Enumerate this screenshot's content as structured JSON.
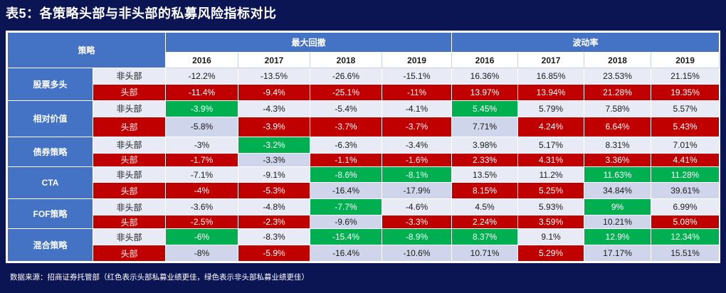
{
  "title": "表5：各策略头部与非头部的私募风险指标对比",
  "headers": {
    "strategy": "策略",
    "group_drawdown": "最大回撤",
    "group_volatility": "波动率",
    "years": [
      "2016",
      "2017",
      "2018",
      "2019",
      "2016",
      "2017",
      "2018",
      "2019"
    ]
  },
  "rows": [
    {
      "category": "股票多头",
      "sub": "非头部",
      "cells": [
        "-12.2%",
        "-13.5%",
        "-26.6%",
        "-15.1%",
        "16.36%",
        "16.85%",
        "23.53%",
        "21.15%"
      ],
      "bg": [
        "light",
        "light",
        "light",
        "light",
        "light",
        "light",
        "light",
        "light"
      ]
    },
    {
      "category": "股票多头",
      "sub": "头部",
      "cells": [
        "-11.4%",
        "-9.4%",
        "-25.1%",
        "-11%",
        "13.97%",
        "13.94%",
        "21.28%",
        "19.35%"
      ],
      "bg": [
        "red",
        "red",
        "red",
        "red",
        "red",
        "red",
        "red",
        "red"
      ]
    },
    {
      "category": "相对价值",
      "sub": "非头部",
      "cells": [
        "-3.9%",
        "-4.3%",
        "-5.4%",
        "-4.1%",
        "5.45%",
        "5.79%",
        "7.58%",
        "5.57%"
      ],
      "bg": [
        "green",
        "light",
        "light",
        "light",
        "green",
        "light",
        "light",
        "light"
      ]
    },
    {
      "category": "相对价值",
      "sub": "头部",
      "cells": [
        "-5.8%",
        "-3.9%",
        "-3.7%",
        "-3.7%",
        "7.71%",
        "4.24%",
        "6.64%",
        "5.43%"
      ],
      "bg": [
        "mid",
        "red",
        "red",
        "red",
        "mid",
        "red",
        "red",
        "red"
      ]
    },
    {
      "category": "债券策略",
      "sub": "非头部",
      "cells": [
        "-3%",
        "-3.2%",
        "-6.3%",
        "-3.4%",
        "3.98%",
        "5.17%",
        "8.31%",
        "7.01%"
      ],
      "bg": [
        "light",
        "green",
        "light",
        "light",
        "light",
        "light",
        "light",
        "light"
      ]
    },
    {
      "category": "债券策略",
      "sub": "头部",
      "cells": [
        "-1.7%",
        "-3.3%",
        "-1.1%",
        "-1.6%",
        "2.33%",
        "4.31%",
        "3.36%",
        "4.41%"
      ],
      "bg": [
        "red",
        "mid",
        "red",
        "red",
        "red",
        "red",
        "red",
        "red"
      ]
    },
    {
      "category": "CTA",
      "sub": "非头部",
      "cells": [
        "-7.1%",
        "-9.1%",
        "-8.6%",
        "-8.1%",
        "13.5%",
        "11.2%",
        "11.63%",
        "11.28%"
      ],
      "bg": [
        "light",
        "light",
        "green",
        "green",
        "light",
        "light",
        "green",
        "green"
      ]
    },
    {
      "category": "CTA",
      "sub": "头部",
      "cells": [
        "-4%",
        "-5.3%",
        "-16.4%",
        "-17.9%",
        "8.15%",
        "5.25%",
        "34.84%",
        "39.61%"
      ],
      "bg": [
        "red",
        "red",
        "mid",
        "mid",
        "red",
        "red",
        "mid",
        "mid"
      ]
    },
    {
      "category": "FOF策略",
      "sub": "非头部",
      "cells": [
        "-3.6%",
        "-4.8%",
        "-7.7%",
        "-4.6%",
        "4.5%",
        "5.93%",
        "9%",
        "6.99%"
      ],
      "bg": [
        "light",
        "light",
        "green",
        "light",
        "light",
        "light",
        "green",
        "light"
      ]
    },
    {
      "category": "FOF策略",
      "sub": "头部",
      "cells": [
        "-2.5%",
        "-2.3%",
        "-9.6%",
        "-3.3%",
        "2.24%",
        "3.59%",
        "10.21%",
        "5.08%"
      ],
      "bg": [
        "red",
        "red",
        "mid",
        "red",
        "red",
        "red",
        "mid",
        "red"
      ]
    },
    {
      "category": "混合策略",
      "sub": "非头部",
      "cells": [
        "-6%",
        "-8.3%",
        "-15.4%",
        "-8.9%",
        "8.37%",
        "9.1%",
        "12.9%",
        "12.34%"
      ],
      "bg": [
        "green",
        "light",
        "green",
        "green",
        "green",
        "light",
        "green",
        "green"
      ]
    },
    {
      "category": "混合策略",
      "sub": "头部",
      "cells": [
        "-8%",
        "-5.9%",
        "-16.4%",
        "-10.6%",
        "10.71%",
        "5.29%",
        "17.17%",
        "15.51%"
      ],
      "bg": [
        "mid",
        "red",
        "mid",
        "mid",
        "mid",
        "red",
        "mid",
        "mid"
      ]
    }
  ],
  "footer": "数据来源：招商证券托管部（红色表示头部私募业绩更佳，绿色表示非头部私募业绩更佳）",
  "colors": {
    "header_blue": "#4472c4",
    "red": "#c00000",
    "green": "#00b050",
    "light": "#e8ebf5",
    "mid": "#cfd5ea",
    "page_bg": "#0c1553"
  }
}
